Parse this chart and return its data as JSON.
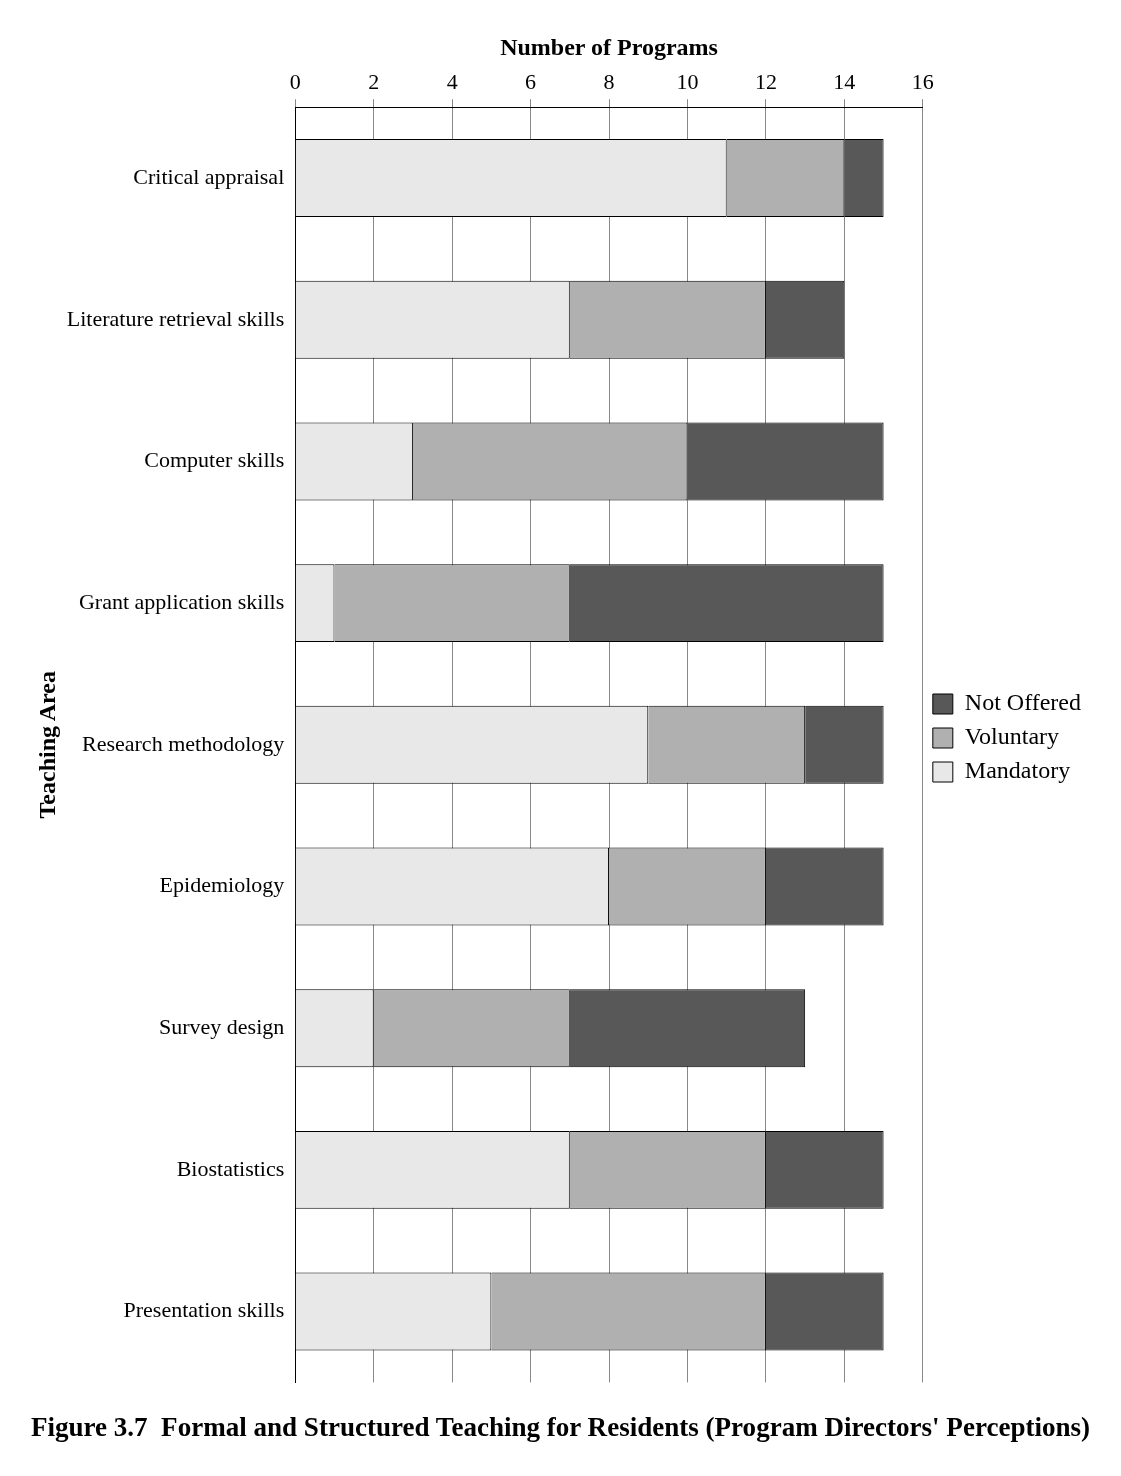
{
  "chart_data": {
    "type": "bar",
    "orientation": "horizontal",
    "stacked": true,
    "title": "Figure 3.7  Formal and Structured Teaching for Residents (Program Directors' Perceptions)",
    "xlabel": "Number of Programs",
    "ylabel": "Teaching Area",
    "categories": [
      "Critical appraisal",
      "Literature retrieval skills",
      "Computer skills",
      "Grant application skills",
      "Research methodology",
      "Epidemiology",
      "Survey design",
      "Biostatistics",
      "Presentation skills"
    ],
    "series": [
      {
        "name": "Mandatory",
        "color": "#e8e8e8",
        "values": [
          11,
          7,
          3,
          1,
          9,
          8,
          2,
          7,
          5
        ]
      },
      {
        "name": "Voluntary",
        "color": "#b0b0b0",
        "values": [
          3,
          5,
          7,
          6,
          4,
          4,
          5,
          5,
          7
        ]
      },
      {
        "name": "Not Offered",
        "color": "#585858",
        "values": [
          1,
          2,
          5,
          8,
          2,
          3,
          6,
          3,
          3
        ]
      }
    ],
    "xlim": [
      0,
      16
    ],
    "xticks": [
      0,
      2,
      4,
      6,
      8,
      10,
      12,
      14,
      16
    ],
    "grid": "x",
    "legend": "right"
  }
}
